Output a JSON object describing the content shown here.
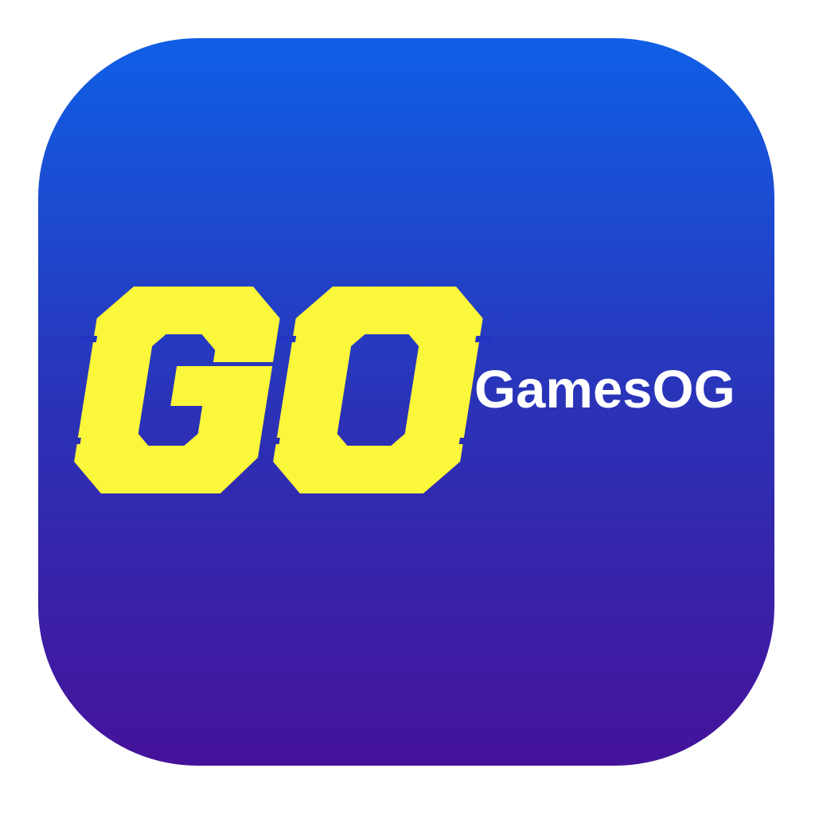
{
  "icon": {
    "logo_letters": "GO",
    "brand_name": "GamesOG",
    "logo_icon": "go-monogram-icon"
  },
  "colors": {
    "gradient_top": "#0f5fe6",
    "gradient_mid": "#2a33b8",
    "gradient_bottom": "#45129a",
    "logo_yellow": "#fbf73a",
    "text_white": "#ffffff"
  }
}
